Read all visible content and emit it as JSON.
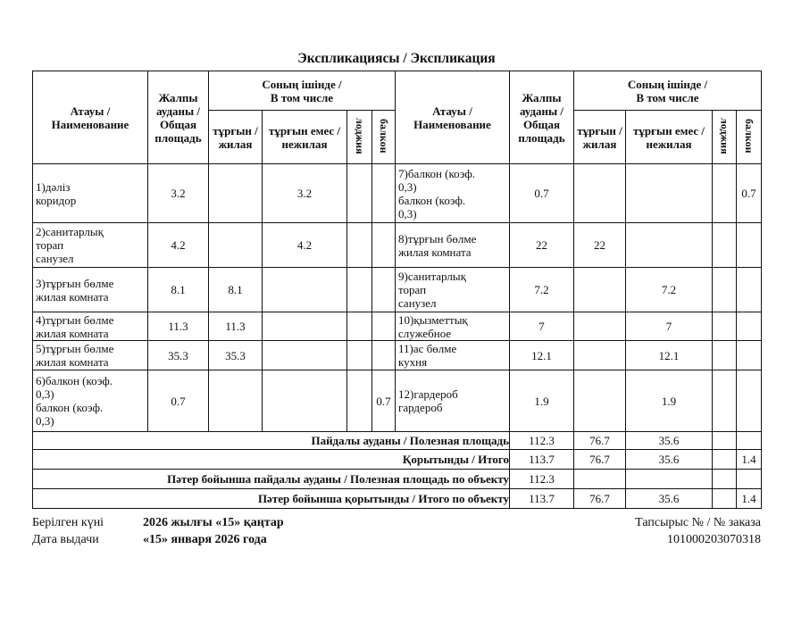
{
  "title": "Экспликациясы / Экспликация",
  "headers": {
    "name": "Атауы /\nНаименование",
    "total": "Жалпы\nауданы /\nОбщая\nплощадь",
    "including": "Соның ішінде /\nВ том числе",
    "living": "тұрғын /\nжилая",
    "nonliving": "тұрғын емес /\nнежилая",
    "loggia": "лоджия",
    "balcony": "балкон"
  },
  "rows": [
    {
      "left": {
        "name": "1)дәліз\n  коридор",
        "total": "3.2",
        "living": "",
        "nonliving": "3.2",
        "loggia": "",
        "balcony": ""
      },
      "right": {
        "name": "7)балкон (коэф.\n0,3)\n  балкон (коэф.\n0,3)",
        "total": "0.7",
        "living": "",
        "nonliving": "",
        "loggia": "",
        "balcony": "0.7"
      }
    },
    {
      "left": {
        "name": "2)санитарлық\nторап\n  санузел",
        "total": "4.2",
        "living": "",
        "nonliving": "4.2",
        "loggia": "",
        "balcony": ""
      },
      "right": {
        "name": "8)тұрғын бөлме\n  жилая комната",
        "total": "22",
        "living": "22",
        "nonliving": "",
        "loggia": "",
        "balcony": ""
      }
    },
    {
      "left": {
        "name": "3)тұрғын бөлме\n  жилая комната",
        "total": "8.1",
        "living": "8.1",
        "nonliving": "",
        "loggia": "",
        "balcony": ""
      },
      "right": {
        "name": "9)санитарлық\nторап\n  санузел",
        "total": "7.2",
        "living": "",
        "nonliving": "7.2",
        "loggia": "",
        "balcony": ""
      }
    },
    {
      "left": {
        "name": "4)тұрғын бөлме\n  жилая комната",
        "total": "11.3",
        "living": "11.3",
        "nonliving": "",
        "loggia": "",
        "balcony": ""
      },
      "right": {
        "name": "10)қызметтық\n  служебное",
        "total": "7",
        "living": "",
        "nonliving": "7",
        "loggia": "",
        "balcony": ""
      }
    },
    {
      "left": {
        "name": "5)тұрғын бөлме\n  жилая комната",
        "total": "35.3",
        "living": "35.3",
        "nonliving": "",
        "loggia": "",
        "balcony": ""
      },
      "right": {
        "name": "11)ас бөлме\n  кухня",
        "total": "12.1",
        "living": "",
        "nonliving": "12.1",
        "loggia": "",
        "balcony": ""
      }
    },
    {
      "left": {
        "name": "6)балкон (коэф.\n0,3)\n  балкон (коэф.\n0,3)",
        "total": "0.7",
        "living": "",
        "nonliving": "",
        "loggia": "",
        "balcony": "0.7"
      },
      "right": {
        "name": "12)гардероб\n  гардероб",
        "total": "1.9",
        "living": "",
        "nonliving": "1.9",
        "loggia": "",
        "balcony": ""
      }
    }
  ],
  "summary": [
    {
      "label": "Пайдалы ауданы / Полезная площадь",
      "total": "112.3",
      "living": "76.7",
      "nonliving": "35.6",
      "loggia": "",
      "balcony": ""
    },
    {
      "label": "Қорытынды / Итого",
      "total": "113.7",
      "living": "76.7",
      "nonliving": "35.6",
      "loggia": "",
      "balcony": "1.4"
    },
    {
      "label": "Пәтер бойынша пайдалы ауданы / Полезная площадь по объекту",
      "total": "112.3",
      "living": "",
      "nonliving": "",
      "loggia": "",
      "balcony": ""
    },
    {
      "label": "Пәтер бойынша қорытынды / Итого по объекту",
      "total": "113.7",
      "living": "76.7",
      "nonliving": "35.6",
      "loggia": "",
      "balcony": "1.4"
    }
  ],
  "footer": {
    "issue_date_label_kz": "Берілген күні",
    "issue_date_kz": "2026 жылғы «15» қаңтар",
    "issue_date_label_ru": "Дата выдачи",
    "issue_date_ru": "«15» января 2026 года",
    "order_label": "Тапсырыс № / № заказа",
    "order_number": "10100020307031 8"
  }
}
